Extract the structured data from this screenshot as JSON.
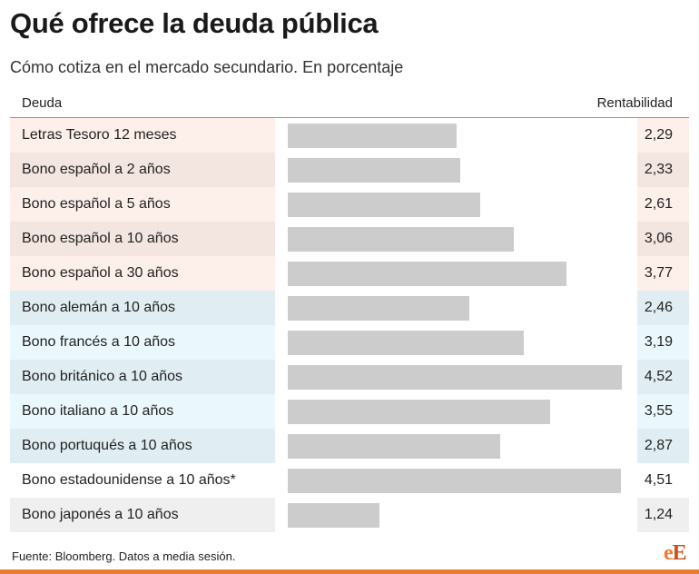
{
  "header": {
    "title": "Qué ofrece la deuda pública",
    "subtitle": "Cómo cotiza en el mercado secundario. En porcentaje"
  },
  "table": {
    "col_name": "Deuda",
    "col_value": "Rentabilidad"
  },
  "chart_data": {
    "type": "bar",
    "title": "Qué ofrece la deuda pública",
    "subtitle": "Cómo cotiza en el mercado secundario. En porcentaje",
    "xlabel": "Deuda",
    "ylabel": "Rentabilidad",
    "ylim": [
      0,
      4.52
    ],
    "categories": [
      "Letras Tesoro 12 meses",
      "Bono español a 2 años",
      "Bono español a 5 años",
      "Bono español a 10 años",
      "Bono español a 30 años",
      "Bono alemán a 10 años",
      "Bono francés a 10 años",
      "Bono británico a 10 años",
      "Bono italiano a 10 años",
      "Bono portuqués a 10 años",
      "Bono estadounidense a 10 años*",
      "Bono japonés a 10 años"
    ],
    "values": [
      2.29,
      2.33,
      2.61,
      3.06,
      3.77,
      2.46,
      3.19,
      4.52,
      3.55,
      2.87,
      4.51,
      1.24
    ],
    "value_labels": [
      "2,29",
      "2,33",
      "2,61",
      "3,06",
      "3,77",
      "2,46",
      "3,19",
      "4,52",
      "3,55",
      "2,87",
      "4,51",
      "1,24"
    ],
    "row_colors": [
      "#fdf0ea",
      "#f3e5e0",
      "#fdf0ea",
      "#f3e5e0",
      "#fdf0ea",
      "#e0edf2",
      "#eaf8fd",
      "#e0edf2",
      "#eaf8fd",
      "#e0edf2",
      "#ffffff",
      "#efefef"
    ],
    "bar_color": "#cccccc",
    "grid": false
  },
  "footer": {
    "source": "Fuente: Bloomberg. Datos a media sesión.",
    "logo_first": "e",
    "logo_second": "E"
  },
  "colors": {
    "accent": "#f07a2b"
  }
}
